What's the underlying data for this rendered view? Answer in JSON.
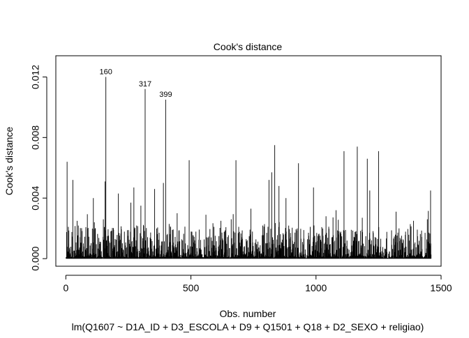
{
  "chart_data": {
    "type": "bar",
    "title": "Cook's distance",
    "xlabel": "Obs. number",
    "ylabel": "Cook's distance",
    "subtitle": "lm(Q1607 ~ D1A_ID + D3_ESCOLA + D9 + Q1501 + Q18 + D2_SEXO + religiao)",
    "xlim": [
      -40,
      1500
    ],
    "ylim": [
      -0.0005,
      0.0134
    ],
    "x_ticks": [
      0,
      500,
      1000,
      1500
    ],
    "y_ticks": [
      0.0,
      0.004,
      0.008,
      0.012
    ],
    "x_tick_labels": [
      "0",
      "500",
      "1000",
      "1500"
    ],
    "y_tick_labels": [
      "0.000",
      "0.004",
      "0.008",
      "0.012"
    ],
    "n_obs": 1460,
    "grid": false,
    "legend": "none",
    "note": "Each observation drawn as a vertical spike from 0 to its Cook's distance. Named peaks are read from labels; remaining prominent spikes estimated from the axis.",
    "labeled_points": [
      {
        "label": "160",
        "x": 160,
        "y": 0.012
      },
      {
        "label": "317",
        "x": 317,
        "y": 0.0112
      },
      {
        "label": "399",
        "x": 399,
        "y": 0.0105
      }
    ],
    "prominent_spikes": [
      {
        "x": 5,
        "y": 0.0064
      },
      {
        "x": 10,
        "y": 0.0021
      },
      {
        "x": 28,
        "y": 0.0052
      },
      {
        "x": 45,
        "y": 0.0025
      },
      {
        "x": 110,
        "y": 0.004
      },
      {
        "x": 150,
        "y": 0.0026
      },
      {
        "x": 157,
        "y": 0.0051
      },
      {
        "x": 210,
        "y": 0.0043
      },
      {
        "x": 260,
        "y": 0.0037
      },
      {
        "x": 272,
        "y": 0.0047
      },
      {
        "x": 300,
        "y": 0.0035
      },
      {
        "x": 355,
        "y": 0.0046
      },
      {
        "x": 390,
        "y": 0.005
      },
      {
        "x": 445,
        "y": 0.003
      },
      {
        "x": 493,
        "y": 0.0065
      },
      {
        "x": 560,
        "y": 0.0029
      },
      {
        "x": 620,
        "y": 0.0025
      },
      {
        "x": 680,
        "y": 0.0065
      },
      {
        "x": 740,
        "y": 0.0033
      },
      {
        "x": 812,
        "y": 0.0052
      },
      {
        "x": 823,
        "y": 0.0057
      },
      {
        "x": 835,
        "y": 0.0075
      },
      {
        "x": 852,
        "y": 0.0048
      },
      {
        "x": 880,
        "y": 0.004
      },
      {
        "x": 930,
        "y": 0.0063
      },
      {
        "x": 990,
        "y": 0.0047
      },
      {
        "x": 1040,
        "y": 0.0028
      },
      {
        "x": 1080,
        "y": 0.0032
      },
      {
        "x": 1112,
        "y": 0.0071
      },
      {
        "x": 1165,
        "y": 0.0074
      },
      {
        "x": 1185,
        "y": 0.0027
      },
      {
        "x": 1205,
        "y": 0.0066
      },
      {
        "x": 1215,
        "y": 0.0045
      },
      {
        "x": 1250,
        "y": 0.0071
      },
      {
        "x": 1320,
        "y": 0.0031
      },
      {
        "x": 1390,
        "y": 0.0025
      },
      {
        "x": 1445,
        "y": 0.0026
      },
      {
        "x": 1458,
        "y": 0.0045
      }
    ],
    "colors": {
      "spike": "#000000",
      "axis": "#000000",
      "background": "#ffffff"
    }
  }
}
